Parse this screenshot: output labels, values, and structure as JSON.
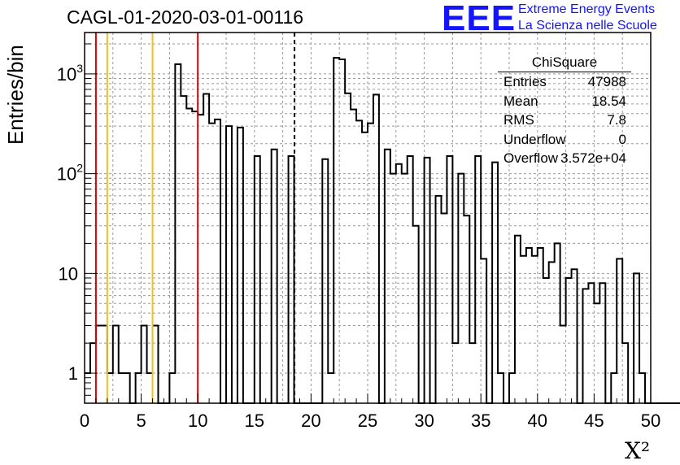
{
  "title": "CAGL-01-2020-03-01-00116",
  "logo": {
    "mark": "EEE",
    "line1": "Extreme Energy Events",
    "line2": "La Scienza nelle Scuole"
  },
  "stats_box": {
    "title": "ChiSquare",
    "rows": [
      {
        "key": "Entries",
        "value": "47988"
      },
      {
        "key": "Mean",
        "value": "18.54"
      },
      {
        "key": "RMS",
        "value": "7.8"
      },
      {
        "key": "Underflow",
        "value": "0"
      },
      {
        "key": "Overflow",
        "value": "3.572e+04"
      }
    ]
  },
  "colors": {
    "hist_line": "#000000",
    "red_markers": "#dd0000",
    "yellow_markers": "#f0c020",
    "grid": "#999999",
    "logo": "#1414ff"
  },
  "chart_data": {
    "type": "bar",
    "hist_style": "step",
    "xlabel": "X²",
    "ylabel": "Entries/bin",
    "xlim": [
      0,
      50
    ],
    "ylim": [
      0.5,
      2600
    ],
    "yscale": "log",
    "grid": true,
    "x_ticks": [
      "0",
      "5",
      "10",
      "15",
      "20",
      "25",
      "30",
      "35",
      "40",
      "45",
      "50"
    ],
    "y_ticks": [
      {
        "value": 1,
        "label": "1"
      },
      {
        "value": 10,
        "label": "10"
      },
      {
        "value": 100,
        "label": "10²"
      },
      {
        "value": 1000,
        "label": "10³"
      }
    ],
    "bin_width": 0.5,
    "values": [
      1,
      2,
      3,
      3,
      1,
      3,
      1,
      1,
      0,
      1,
      3,
      1,
      3,
      0,
      0,
      1,
      1250,
      600,
      450,
      420,
      390,
      630,
      320,
      350,
      0,
      300,
      0,
      290,
      0,
      0,
      150,
      0,
      0,
      175,
      0,
      0,
      150,
      0,
      0,
      0,
      0,
      0,
      140,
      1,
      1450,
      1400,
      640,
      440,
      340,
      260,
      320,
      620,
      0,
      175,
      100,
      125,
      100,
      150,
      30,
      0,
      145,
      0,
      60,
      40,
      150,
      2,
      100,
      38,
      2,
      150,
      14,
      0,
      130,
      1,
      0,
      1,
      24,
      15,
      18,
      15,
      18,
      9,
      13,
      20,
      3,
      9,
      11,
      0,
      7,
      8,
      5,
      8,
      0,
      1,
      14,
      2,
      0,
      10,
      1,
      0,
      0,
      0,
      0,
      0,
      0,
      0,
      0
    ],
    "vlines": [
      {
        "x": 1,
        "color": "red",
        "style": "solid"
      },
      {
        "x": 2,
        "color": "yellow",
        "style": "solid"
      },
      {
        "x": 6,
        "color": "yellow",
        "style": "solid"
      },
      {
        "x": 10,
        "color": "red",
        "style": "solid"
      },
      {
        "x": 18.54,
        "color": "black",
        "style": "dashed"
      }
    ]
  }
}
